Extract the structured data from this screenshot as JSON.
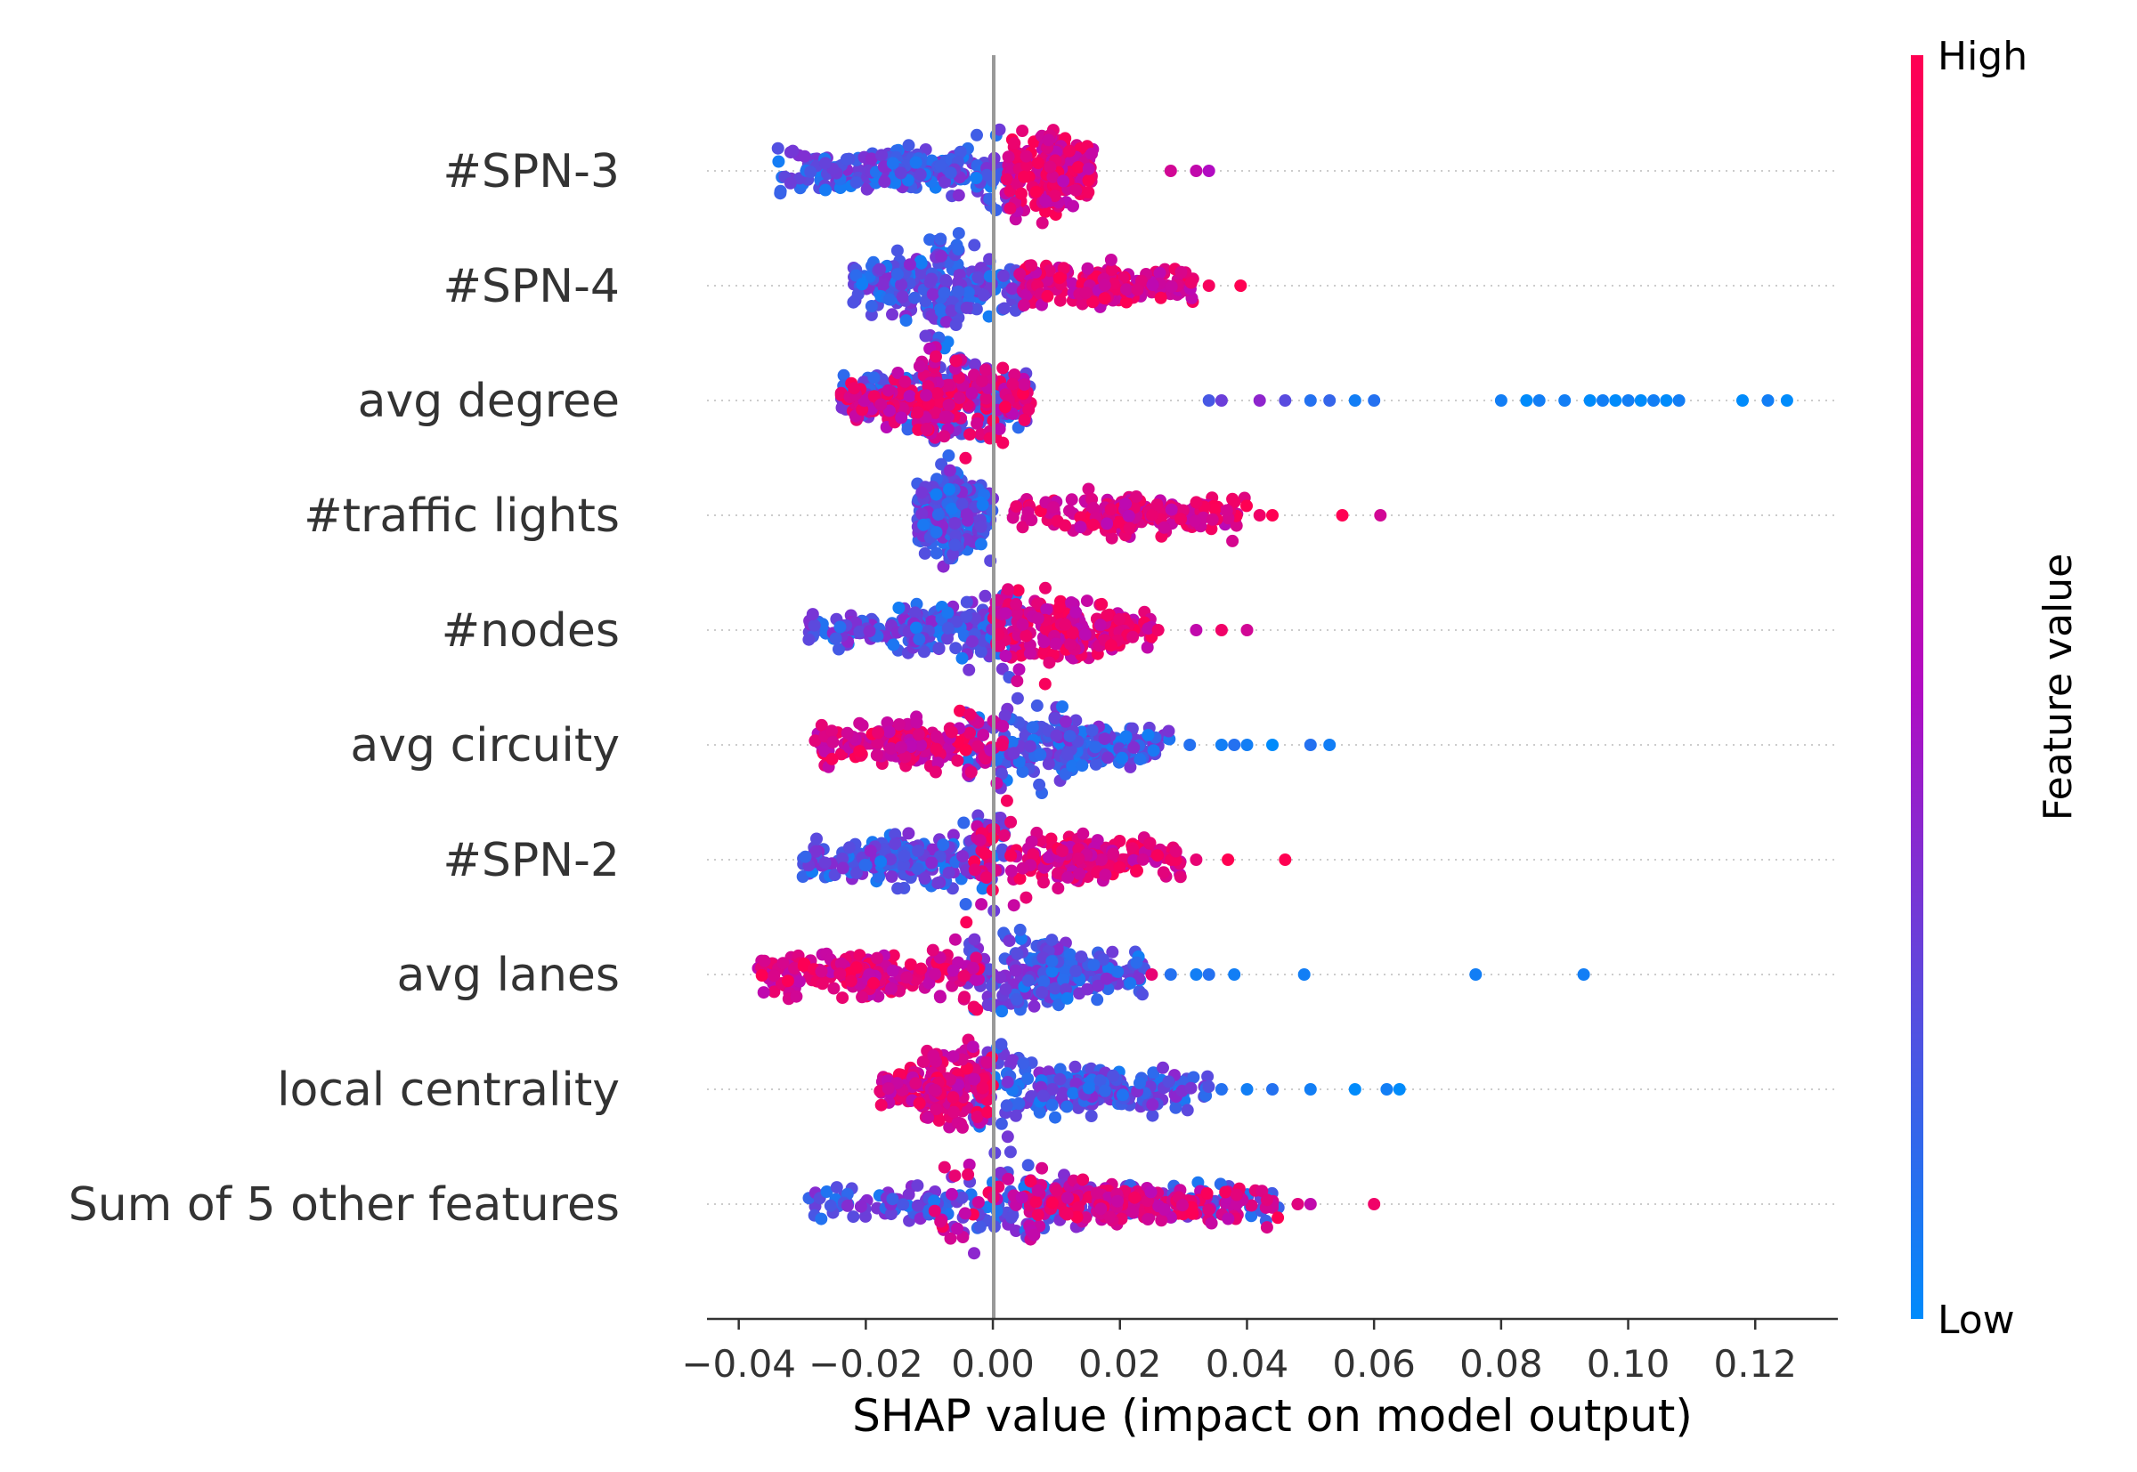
{
  "chart_data": {
    "type": "scatter",
    "subtype": "shap-beeswarm",
    "title": "",
    "xlabel": "SHAP value (impact on model output)",
    "ylabel": "",
    "xlim": [
      -0.045,
      0.133
    ],
    "x_ticks": [
      -0.04,
      -0.02,
      0.0,
      0.02,
      0.04,
      0.06,
      0.08,
      0.1,
      0.12
    ],
    "x_tick_labels": [
      "−0.04",
      "−0.02",
      "0.00",
      "0.02",
      "0.04",
      "0.06",
      "0.08",
      "0.10",
      "0.12"
    ],
    "grid": false,
    "zero_line": 0.0,
    "colorbar": {
      "label": "Feature value",
      "high_label": "High",
      "low_label": "Low",
      "high_color": "#ff0052",
      "mid_color": "#b20bc2",
      "low_color": "#008bfb"
    },
    "features": [
      {
        "name": "#SPN-3",
        "bulk": [
          -0.034,
          0.004
        ],
        "high_side": [
          0.002,
          0.016
        ],
        "peak_x": 0.006,
        "outliers": [
          {
            "x": 0.028,
            "c": 0.7
          },
          {
            "x": 0.032,
            "c": 0.6
          },
          {
            "x": 0.034,
            "c": 0.5
          }
        ]
      },
      {
        "name": "#SPN-4",
        "bulk": [
          -0.022,
          0.005
        ],
        "high_side": [
          0.004,
          0.032
        ],
        "peak_x": -0.009,
        "outliers": [
          {
            "x": 0.034,
            "c": 0.95
          },
          {
            "x": 0.039,
            "c": 1.0
          }
        ]
      },
      {
        "name": "avg degree",
        "bulk": [
          -0.024,
          0.006
        ],
        "high_side": [
          -0.024,
          0.006
        ],
        "peak_x": -0.005,
        "outliers": [
          {
            "x": 0.034,
            "c": 0.2
          },
          {
            "x": 0.036,
            "c": 0.3
          },
          {
            "x": 0.042,
            "c": 0.4
          },
          {
            "x": 0.046,
            "c": 0.25
          },
          {
            "x": 0.05,
            "c": 0.1
          },
          {
            "x": 0.053,
            "c": 0.15
          },
          {
            "x": 0.057,
            "c": 0.05
          },
          {
            "x": 0.06,
            "c": 0.1
          },
          {
            "x": 0.08,
            "c": 0.05
          },
          {
            "x": 0.084,
            "c": 0.0
          },
          {
            "x": 0.086,
            "c": 0.05
          },
          {
            "x": 0.09,
            "c": 0.05
          },
          {
            "x": 0.094,
            "c": 0.0
          },
          {
            "x": 0.096,
            "c": 0.05
          },
          {
            "x": 0.098,
            "c": 0.0
          },
          {
            "x": 0.1,
            "c": 0.05
          },
          {
            "x": 0.102,
            "c": 0.0
          },
          {
            "x": 0.104,
            "c": 0.05
          },
          {
            "x": 0.106,
            "c": 0.0
          },
          {
            "x": 0.108,
            "c": 0.05
          },
          {
            "x": 0.118,
            "c": 0.0
          },
          {
            "x": 0.122,
            "c": 0.05
          },
          {
            "x": 0.125,
            "c": 0.0
          }
        ]
      },
      {
        "name": "#traffic lights",
        "bulk": [
          -0.012,
          0.0
        ],
        "high_side": [
          0.003,
          0.04
        ],
        "peak_x": -0.007,
        "outliers": [
          {
            "x": 0.042,
            "c": 0.9
          },
          {
            "x": 0.044,
            "c": 1.0
          },
          {
            "x": 0.055,
            "c": 1.0
          },
          {
            "x": 0.061,
            "c": 0.7
          }
        ]
      },
      {
        "name": "#nodes",
        "bulk": [
          -0.029,
          0.005
        ],
        "high_side": [
          0.0,
          0.025
        ],
        "peak_x": 0.005,
        "outliers": [
          {
            "x": 0.026,
            "c": 0.9
          },
          {
            "x": 0.032,
            "c": 0.6
          },
          {
            "x": 0.036,
            "c": 0.9
          },
          {
            "x": 0.04,
            "c": 0.7
          }
        ]
      },
      {
        "name": "avg circuity",
        "bulk": [
          -0.005,
          0.028
        ],
        "high_side": [
          -0.028,
          0.002
        ],
        "peak_x": 0.003,
        "outliers": [
          {
            "x": 0.031,
            "c": 0.1
          },
          {
            "x": 0.036,
            "c": 0.05
          },
          {
            "x": 0.038,
            "c": 0.1
          },
          {
            "x": 0.04,
            "c": 0.05
          },
          {
            "x": 0.044,
            "c": 0.0
          },
          {
            "x": 0.05,
            "c": 0.1
          },
          {
            "x": 0.053,
            "c": 0.05
          }
        ]
      },
      {
        "name": "#SPN-2",
        "bulk": [
          -0.03,
          0.002
        ],
        "high_side": [
          -0.003,
          0.03
        ],
        "peak_x": 0.0,
        "outliers": [
          {
            "x": 0.032,
            "c": 0.85
          },
          {
            "x": 0.037,
            "c": 1.0
          },
          {
            "x": 0.046,
            "c": 1.0
          }
        ]
      },
      {
        "name": "avg lanes",
        "bulk": [
          -0.004,
          0.024
        ],
        "high_side": [
          -0.037,
          -0.002
        ],
        "peak_x": 0.002,
        "outliers": [
          {
            "x": 0.025,
            "c": 0.85
          },
          {
            "x": 0.028,
            "c": 0.1
          },
          {
            "x": 0.032,
            "c": 0.05
          },
          {
            "x": 0.034,
            "c": 0.1
          },
          {
            "x": 0.038,
            "c": 0.05
          },
          {
            "x": 0.049,
            "c": 0.05
          },
          {
            "x": 0.076,
            "c": 0.05
          },
          {
            "x": 0.093,
            "c": 0.05
          }
        ]
      },
      {
        "name": "local centrality",
        "bulk": [
          -0.003,
          0.034
        ],
        "high_side": [
          -0.018,
          0.0
        ],
        "peak_x": -0.002,
        "outliers": [
          {
            "x": 0.036,
            "c": 0.1
          },
          {
            "x": 0.04,
            "c": 0.05
          },
          {
            "x": 0.044,
            "c": 0.1
          },
          {
            "x": 0.05,
            "c": 0.05
          },
          {
            "x": 0.057,
            "c": 0.0
          },
          {
            "x": 0.062,
            "c": 0.05
          },
          {
            "x": 0.064,
            "c": 0.0
          }
        ]
      },
      {
        "name": "Sum of 5 other features",
        "bulk": [
          -0.029,
          0.045
        ],
        "high_side": [
          -0.01,
          0.045
        ],
        "peak_x": 0.0,
        "outliers": [
          {
            "x": 0.048,
            "c": 0.8
          },
          {
            "x": 0.05,
            "c": 0.6
          },
          {
            "x": 0.06,
            "c": 0.9
          }
        ]
      }
    ]
  }
}
